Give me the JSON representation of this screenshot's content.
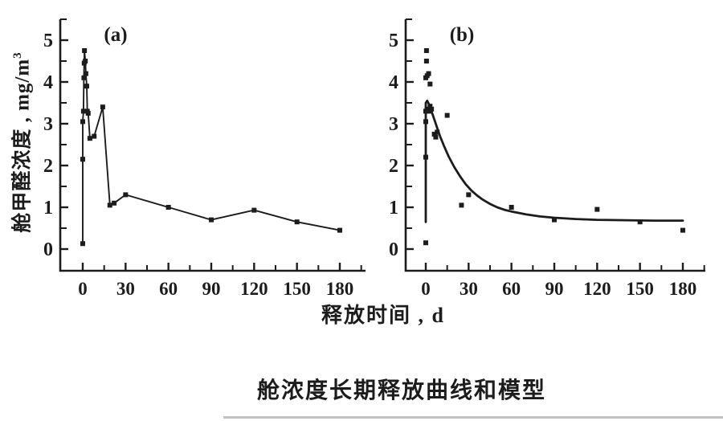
{
  "axes": {
    "x_label": "释放时间 , d",
    "y_label_main": "舱甲醛浓度 , mg/m",
    "y_label_sup": "3",
    "x_ticks": [
      0,
      30,
      60,
      90,
      120,
      150,
      180
    ],
    "y_ticks": [
      0,
      1,
      2,
      3,
      4,
      5
    ],
    "x_minor_step": 15,
    "y_minor_step": 0.5
  },
  "caption": {
    "text": "舱浓度长期释放曲线和模型"
  },
  "colors": {
    "ink": "#1c1c1c",
    "background": "#ffffff",
    "divider": "#c2c2c2"
  },
  "chart_data": [
    {
      "type": "line",
      "panel_label": "(a)",
      "xlabel": "释放时间 , d",
      "ylabel": "舱甲醛浓度 , mg/m3",
      "xlim": [
        0,
        195
      ],
      "ylim": [
        0,
        5.5
      ],
      "grid": false,
      "legend": "none",
      "series": [
        {
          "name": "measured-concentration-curve",
          "marker": "square",
          "line": true,
          "points": [
            [
              0,
              0.13
            ],
            [
              0,
              2.15
            ],
            [
              0,
              3.05
            ],
            [
              0.5,
              3.3
            ],
            [
              0.8,
              4.1
            ],
            [
              1,
              4.45
            ],
            [
              1.2,
              4.75
            ],
            [
              1.8,
              4.5
            ],
            [
              2.2,
              4.2
            ],
            [
              2.8,
              3.9
            ],
            [
              3.2,
              3.3
            ],
            [
              3.8,
              3.25
            ],
            [
              5,
              2.65
            ],
            [
              8,
              2.7
            ],
            [
              14,
              3.4
            ],
            [
              19,
              1.05
            ],
            [
              22,
              1.1
            ],
            [
              30,
              1.3
            ],
            [
              60,
              1.0
            ],
            [
              90,
              0.7
            ],
            [
              120,
              0.93
            ],
            [
              150,
              0.65
            ],
            [
              180,
              0.45
            ]
          ]
        }
      ]
    },
    {
      "type": "scatter",
      "panel_label": "(b)",
      "xlabel": "释放时间 , d",
      "ylabel": "舱甲醛浓度 , mg/m3",
      "xlim": [
        0,
        195
      ],
      "ylim": [
        0,
        5.5
      ],
      "grid": false,
      "legend": "none",
      "series": [
        {
          "name": "measured-concentration-points",
          "marker": "square",
          "line": false,
          "points": [
            [
              0,
              0.15
            ],
            [
              0,
              2.2
            ],
            [
              0,
              3.05
            ],
            [
              0,
              3.3
            ],
            [
              1,
              3.35
            ],
            [
              2,
              3.3
            ],
            [
              3,
              3.42
            ],
            [
              4,
              3.35
            ],
            [
              0,
              4.1
            ],
            [
              1,
              4.15
            ],
            [
              2,
              4.2
            ],
            [
              0.5,
              4.5
            ],
            [
              0.5,
              4.75
            ],
            [
              3,
              3.95
            ],
            [
              6,
              2.75
            ],
            [
              7,
              2.68
            ],
            [
              8,
              2.8
            ],
            [
              15,
              3.2
            ],
            [
              25,
              1.05
            ],
            [
              30,
              1.3
            ],
            [
              60,
              1.0
            ],
            [
              90,
              0.7
            ],
            [
              120,
              0.95
            ],
            [
              150,
              0.65
            ],
            [
              180,
              0.45
            ]
          ]
        },
        {
          "name": "decay-model-curve",
          "marker": "none",
          "line": true,
          "points": [
            [
              0,
              0.65
            ],
            [
              0,
              3.5
            ],
            [
              1,
              3.55
            ],
            [
              2,
              3.48
            ],
            [
              4,
              3.3
            ],
            [
              6,
              3.1
            ],
            [
              8,
              2.9
            ],
            [
              10,
              2.7
            ],
            [
              13,
              2.45
            ],
            [
              16,
              2.22
            ],
            [
              20,
              1.96
            ],
            [
              24,
              1.74
            ],
            [
              28,
              1.55
            ],
            [
              32,
              1.4
            ],
            [
              36,
              1.28
            ],
            [
              40,
              1.18
            ],
            [
              45,
              1.08
            ],
            [
              50,
              1.0
            ],
            [
              55,
              0.94
            ],
            [
              60,
              0.9
            ],
            [
              70,
              0.83
            ],
            [
              80,
              0.78
            ],
            [
              90,
              0.75
            ],
            [
              105,
              0.72
            ],
            [
              120,
              0.7
            ],
            [
              140,
              0.69
            ],
            [
              160,
              0.68
            ],
            [
              180,
              0.68
            ]
          ]
        }
      ]
    }
  ]
}
